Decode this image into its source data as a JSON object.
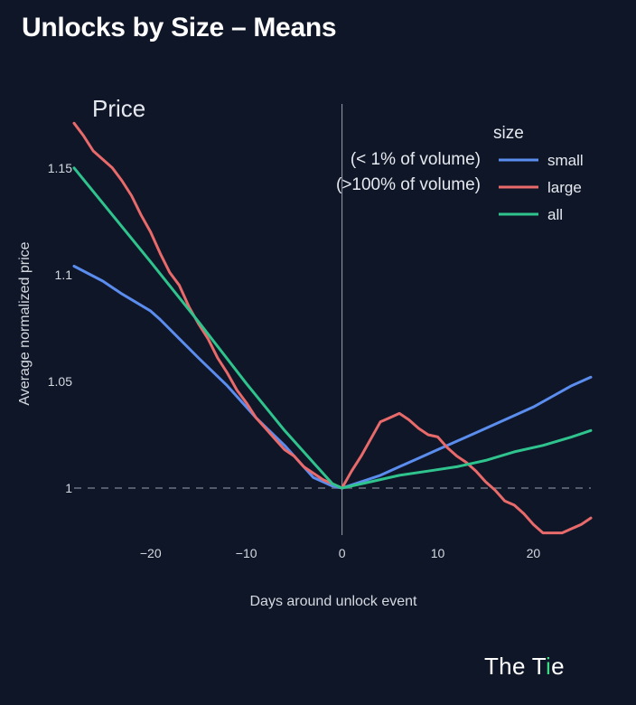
{
  "page": {
    "title": "Unlocks by Size – Means",
    "brand_text": "The T",
    "brand_accent": "i",
    "brand_suffix": "e"
  },
  "colors": {
    "background": "#0f1627",
    "small": "#5b8def",
    "large": "#e86a6a",
    "all": "#2fc48e",
    "zero_line": "#6b7280",
    "reference_line": "#9aa0aa"
  },
  "chart_data": {
    "type": "line",
    "title": "Price",
    "xlabel": "Days around unlock event",
    "ylabel": "Average normalized price",
    "xlim": [
      -28,
      26
    ],
    "ylim": [
      0.978,
      1.18
    ],
    "xticks": [
      -20,
      -10,
      0,
      10,
      20
    ],
    "yticks": [
      1,
      1.05,
      1.1,
      1.15
    ],
    "ytick_labels": [
      "1",
      "1.05",
      "1.1",
      "1.15"
    ],
    "grid": false,
    "reference_line": {
      "axis": "y",
      "value": 1,
      "style": "dashed"
    },
    "vertical_line": {
      "axis": "x",
      "value": 0
    },
    "legend": {
      "title": "size",
      "position": "top-right"
    },
    "annotations": [
      "(< 1% of volume)",
      "(>100% of volume)"
    ],
    "series": [
      {
        "name": "small",
        "color": "#5b8def",
        "x": [
          -28,
          -25,
          -23,
          -20,
          -19,
          -17,
          -15,
          -12,
          -9,
          -6,
          -3,
          -1,
          0,
          2,
          4,
          6,
          8,
          10,
          12,
          14,
          16,
          18,
          20,
          22,
          24,
          26
        ],
        "y": [
          1.104,
          1.097,
          1.091,
          1.083,
          1.079,
          1.07,
          1.061,
          1.048,
          1.033,
          1.02,
          1.005,
          1.001,
          1.0,
          1.003,
          1.006,
          1.01,
          1.014,
          1.018,
          1.022,
          1.026,
          1.03,
          1.034,
          1.038,
          1.043,
          1.048,
          1.052
        ]
      },
      {
        "name": "large",
        "color": "#e86a6a",
        "x": [
          -28,
          -27,
          -26,
          -25,
          -24,
          -23,
          -22,
          -21,
          -20,
          -19,
          -18,
          -17,
          -16,
          -15,
          -14,
          -13,
          -12,
          -11,
          -10,
          -9,
          -8,
          -7,
          -6,
          -5,
          -4,
          -3,
          -2,
          -1,
          0,
          1,
          2,
          3,
          4,
          5,
          6,
          7,
          8,
          9,
          10,
          11,
          12,
          13,
          14,
          15,
          16,
          17,
          18,
          19,
          20,
          21,
          22,
          23,
          24,
          25,
          26
        ],
        "y": [
          1.171,
          1.165,
          1.158,
          1.154,
          1.15,
          1.144,
          1.137,
          1.128,
          1.12,
          1.11,
          1.101,
          1.095,
          1.085,
          1.077,
          1.07,
          1.061,
          1.054,
          1.046,
          1.04,
          1.033,
          1.028,
          1.023,
          1.018,
          1.015,
          1.01,
          1.007,
          1.004,
          1.002,
          1.0,
          1.008,
          1.015,
          1.023,
          1.031,
          1.033,
          1.035,
          1.032,
          1.028,
          1.025,
          1.024,
          1.019,
          1.015,
          1.012,
          1.008,
          1.003,
          0.999,
          0.994,
          0.992,
          0.988,
          0.983,
          0.979,
          0.979,
          0.979,
          0.981,
          0.983,
          0.986
        ]
      },
      {
        "name": "all",
        "color": "#2fc48e",
        "x": [
          -28,
          -20,
          -15,
          -10,
          -6,
          -3,
          -1,
          0,
          3,
          6,
          9,
          12,
          15,
          18,
          21,
          24,
          26
        ],
        "y": [
          1.15,
          1.106,
          1.078,
          1.049,
          1.027,
          1.012,
          1.002,
          1.0,
          1.003,
          1.006,
          1.008,
          1.01,
          1.013,
          1.017,
          1.02,
          1.024,
          1.027
        ]
      }
    ]
  }
}
